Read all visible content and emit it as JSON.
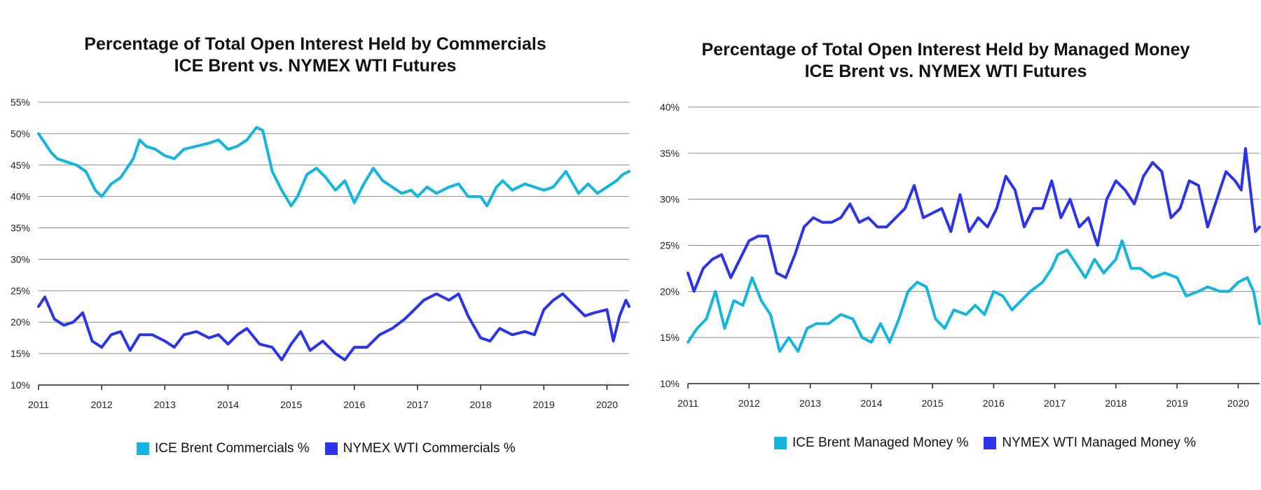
{
  "chart_data": [
    {
      "type": "line",
      "title": [
        "Percentage of Total Open Interest Held by Commercials",
        "ICE Brent vs. NYMEX WTI Futures"
      ],
      "xlabel": "",
      "ylabel": "",
      "x_ticks": [
        "2011",
        "2012",
        "2013",
        "2014",
        "2015",
        "2016",
        "2017",
        "2018",
        "2019",
        "2020"
      ],
      "x_range": [
        2011.0,
        2020.35
      ],
      "y_ticks": [
        "55%",
        "50%",
        "45%",
        "40%",
        "35%",
        "30%",
        "25%",
        "20%",
        "15%",
        "10%"
      ],
      "ylim": [
        10,
        55
      ],
      "grid": "horizontal",
      "legend": "bottom",
      "series": [
        {
          "name": "ICE Brent Commercials %",
          "color": "#14b4e0",
          "x": [
            2011.0,
            2011.1,
            2011.2,
            2011.3,
            2011.45,
            2011.6,
            2011.75,
            2011.9,
            2012.0,
            2012.15,
            2012.3,
            2012.5,
            2012.6,
            2012.7,
            2012.85,
            2013.0,
            2013.15,
            2013.3,
            2013.5,
            2013.7,
            2013.85,
            2014.0,
            2014.15,
            2014.3,
            2014.45,
            2014.55,
            2014.7,
            2014.85,
            2015.0,
            2015.1,
            2015.25,
            2015.4,
            2015.55,
            2015.7,
            2015.85,
            2016.0,
            2016.15,
            2016.3,
            2016.45,
            2016.6,
            2016.75,
            2016.9,
            2017.0,
            2017.15,
            2017.3,
            2017.5,
            2017.65,
            2017.8,
            2018.0,
            2018.1,
            2018.25,
            2018.35,
            2018.5,
            2018.7,
            2018.85,
            2019.0,
            2019.15,
            2019.35,
            2019.55,
            2019.7,
            2019.85,
            2020.0,
            2020.15,
            2020.25,
            2020.35
          ],
          "values": [
            50,
            48.5,
            47,
            46,
            45.5,
            45,
            44,
            41,
            40,
            42,
            43,
            46,
            49,
            48,
            47.5,
            46.5,
            46,
            47.5,
            48,
            48.5,
            49,
            47.5,
            48,
            49,
            51,
            50.5,
            44,
            41,
            38.5,
            40,
            43.5,
            44.5,
            43,
            41,
            42.5,
            39,
            42,
            44.5,
            42.5,
            41.5,
            40.5,
            41,
            40,
            41.5,
            40.5,
            41.5,
            42,
            40,
            40,
            38.5,
            41.5,
            42.5,
            41,
            42,
            41.5,
            41,
            41.5,
            44,
            40.5,
            42,
            40.5,
            41.5,
            42.5,
            43.5,
            44
          ]
        },
        {
          "name": "NYMEX WTI Commercials %",
          "color": "#2a34e8",
          "x": [
            2011.0,
            2011.1,
            2011.25,
            2011.4,
            2011.55,
            2011.7,
            2011.85,
            2012.0,
            2012.15,
            2012.3,
            2012.45,
            2012.6,
            2012.8,
            2013.0,
            2013.15,
            2013.3,
            2013.5,
            2013.7,
            2013.85,
            2014.0,
            2014.15,
            2014.3,
            2014.5,
            2014.7,
            2014.85,
            2015.0,
            2015.15,
            2015.3,
            2015.5,
            2015.7,
            2015.85,
            2016.0,
            2016.2,
            2016.4,
            2016.6,
            2016.8,
            2016.95,
            2017.1,
            2017.3,
            2017.5,
            2017.65,
            2017.8,
            2018.0,
            2018.15,
            2018.3,
            2018.5,
            2018.7,
            2018.85,
            2019.0,
            2019.15,
            2019.3,
            2019.45,
            2019.65,
            2019.8,
            2020.0,
            2020.1,
            2020.2,
            2020.3,
            2020.35
          ],
          "values": [
            22.5,
            24,
            20.5,
            19.5,
            20,
            21.5,
            17,
            16,
            18,
            18.5,
            15.5,
            18,
            18,
            17,
            16,
            18,
            18.5,
            17.5,
            18,
            16.5,
            18,
            19,
            16.5,
            16,
            14,
            16.5,
            18.5,
            15.5,
            17,
            15,
            14,
            16,
            16,
            18,
            19,
            20.5,
            22,
            23.5,
            24.5,
            23.5,
            24.5,
            21,
            17.5,
            17,
            19,
            18,
            18.5,
            18,
            22,
            23.5,
            24.5,
            23,
            21,
            21.5,
            22,
            17,
            21,
            23.5,
            22.5
          ]
        }
      ]
    },
    {
      "type": "line",
      "title": [
        "Percentage of Total Open Interest Held by Managed Money",
        "ICE Brent vs. NYMEX WTI Futures"
      ],
      "xlabel": "",
      "ylabel": "",
      "x_ticks": [
        "2011",
        "2012",
        "2013",
        "2014",
        "2015",
        "2016",
        "2017",
        "2018",
        "2019",
        "2020"
      ],
      "x_range": [
        2011.0,
        2020.35
      ],
      "y_ticks": [
        "40%",
        "35%",
        "30%",
        "25%",
        "20%",
        "15%",
        "10%"
      ],
      "ylim": [
        10,
        40
      ],
      "grid": "horizontal",
      "legend": "bottom",
      "series": [
        {
          "name": "ICE Brent Managed Money %",
          "color": "#14b4e0",
          "x": [
            2011.0,
            2011.15,
            2011.3,
            2011.45,
            2011.6,
            2011.75,
            2011.9,
            2012.05,
            2012.2,
            2012.35,
            2012.5,
            2012.65,
            2012.8,
            2012.95,
            2013.1,
            2013.3,
            2013.5,
            2013.7,
            2013.85,
            2014.0,
            2014.15,
            2014.3,
            2014.45,
            2014.6,
            2014.75,
            2014.9,
            2015.05,
            2015.2,
            2015.35,
            2015.55,
            2015.7,
            2015.85,
            2016.0,
            2016.15,
            2016.3,
            2016.45,
            2016.6,
            2016.8,
            2016.95,
            2017.05,
            2017.2,
            2017.35,
            2017.5,
            2017.65,
            2017.8,
            2018.0,
            2018.1,
            2018.25,
            2018.4,
            2018.6,
            2018.8,
            2019.0,
            2019.15,
            2019.35,
            2019.5,
            2019.7,
            2019.85,
            2020.0,
            2020.15,
            2020.25,
            2020.35
          ],
          "values": [
            14.5,
            16,
            17,
            20,
            16,
            19,
            18.5,
            21.5,
            19,
            17.5,
            13.5,
            15,
            13.5,
            16,
            16.5,
            16.5,
            17.5,
            17,
            15,
            14.5,
            16.5,
            14.5,
            17,
            20,
            21,
            20.5,
            17,
            16,
            18,
            17.5,
            18.5,
            17.5,
            20,
            19.5,
            18,
            19,
            20,
            21,
            22.5,
            24,
            24.5,
            23,
            21.5,
            23.5,
            22,
            23.5,
            25.5,
            22.5,
            22.5,
            21.5,
            22,
            21.5,
            19.5,
            20,
            20.5,
            20,
            20,
            21,
            21.5,
            20,
            16.5
          ]
        },
        {
          "name": "NYMEX WTI Managed Money %",
          "color": "#2a34e8",
          "x": [
            2011.0,
            2011.1,
            2011.25,
            2011.4,
            2011.55,
            2011.7,
            2011.85,
            2012.0,
            2012.15,
            2012.3,
            2012.45,
            2012.6,
            2012.75,
            2012.9,
            2013.05,
            2013.2,
            2013.35,
            2013.5,
            2013.65,
            2013.8,
            2013.95,
            2014.1,
            2014.25,
            2014.4,
            2014.55,
            2014.7,
            2014.85,
            2015.0,
            2015.15,
            2015.3,
            2015.45,
            2015.6,
            2015.75,
            2015.9,
            2016.05,
            2016.2,
            2016.35,
            2016.5,
            2016.65,
            2016.8,
            2016.95,
            2017.1,
            2017.25,
            2017.4,
            2017.55,
            2017.7,
            2017.85,
            2018.0,
            2018.15,
            2018.3,
            2018.45,
            2018.6,
            2018.75,
            2018.9,
            2019.05,
            2019.2,
            2019.35,
            2019.5,
            2019.65,
            2019.8,
            2019.95,
            2020.05,
            2020.12,
            2020.2,
            2020.28,
            2020.35
          ],
          "values": [
            22,
            20,
            22.5,
            23.5,
            24,
            21.5,
            23.5,
            25.5,
            26,
            26,
            22,
            21.5,
            24,
            27,
            28,
            27.5,
            27.5,
            28,
            29.5,
            27.5,
            28,
            27,
            27,
            28,
            29,
            31.5,
            28,
            28.5,
            29,
            26.5,
            30.5,
            26.5,
            28,
            27,
            29,
            32.5,
            31,
            27,
            29,
            29,
            32,
            28,
            30,
            27,
            28,
            25,
            30,
            32,
            31,
            29.5,
            32.5,
            34,
            33,
            28,
            29,
            32,
            31.5,
            27,
            30,
            33,
            32,
            31,
            35.5,
            31,
            26.5,
            27
          ]
        }
      ]
    }
  ]
}
